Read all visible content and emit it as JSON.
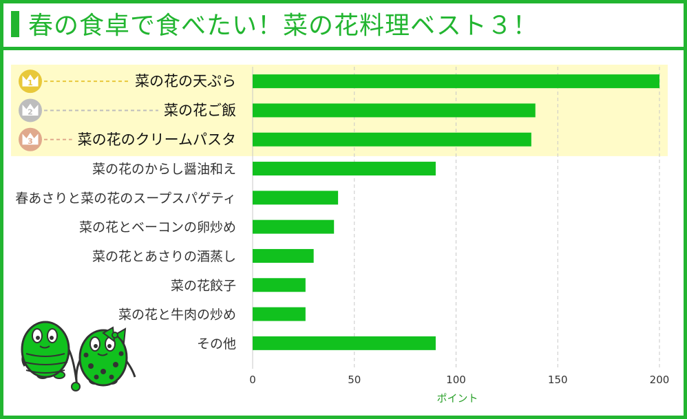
{
  "title": "春の食卓で食べたい！菜の花料理ベスト３！",
  "colors": {
    "accent": "#22b530",
    "bar": "#11c11e",
    "highlight": "#fffbc8",
    "gold": "#e8c83a",
    "silver": "#bdbdbd",
    "bronze": "#e0a98c",
    "grid": "#c8c8c8",
    "xlabel": "#2aa02a"
  },
  "chart_data": {
    "type": "bar",
    "orientation": "horizontal",
    "categories": [
      "菜の花の天ぷら",
      "菜の花ご飯",
      "菜の花のクリームパスタ",
      "菜の花のからし醤油和え",
      "春あさりと菜の花のスープスパゲティ",
      "菜の花とベーコンの卵炒め",
      "菜の花とあさりの酒蒸し",
      "菜の花餃子",
      "菜の花と牛肉の炒め",
      "その他"
    ],
    "values": [
      200,
      139,
      137,
      90,
      42,
      40,
      30,
      26,
      26,
      90
    ],
    "ranks": [
      "1",
      "2",
      "3"
    ],
    "xlabel": "ポイント",
    "xlim": [
      0,
      200
    ],
    "xticks": [
      0,
      50,
      100,
      150,
      200
    ],
    "grid": true,
    "legend": "none"
  },
  "mascots": {
    "left": "green-striped-bean-mascot",
    "right": "green-polka-dot-bean-mascot-with-bow"
  }
}
